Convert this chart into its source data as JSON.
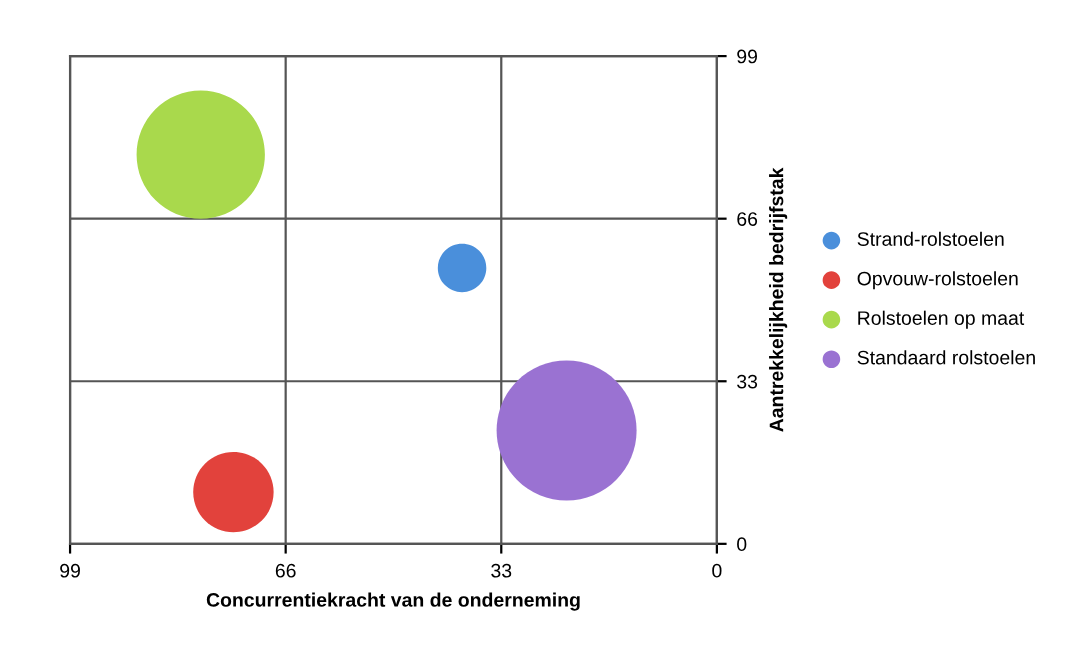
{
  "chart_data": {
    "type": "bubble",
    "xlabel": "Concurrentiekracht van de onderneming",
    "ylabel": "Aantrekkelijkheid bedrijfstak",
    "xlim": [
      99,
      0
    ],
    "xticks": [
      99,
      66,
      33,
      0
    ],
    "ylim": [
      0,
      99
    ],
    "yticks": [
      0,
      33,
      66,
      99
    ],
    "grid": true,
    "legend": "right",
    "series": [
      {
        "name": "Strand-rolstoelen",
        "color": "#4a8fdb",
        "x": [
          39
        ],
        "values": [
          56
        ],
        "sizes": [
          0.12
        ]
      },
      {
        "name": "Opvouw-rolstoelen",
        "color": "#e2423c",
        "x": [
          74
        ],
        "values": [
          10.5
        ],
        "sizes": [
          0.33
        ]
      },
      {
        "name": "Rolstoelen op maat",
        "color": "#a9d94c",
        "x": [
          79
        ],
        "values": [
          79
        ],
        "sizes": [
          0.84
        ]
      },
      {
        "name": "Standaard rolstoelen",
        "color": "#9a72d2",
        "x": [
          23
        ],
        "values": [
          23
        ],
        "sizes": [
          1
        ]
      }
    ]
  }
}
